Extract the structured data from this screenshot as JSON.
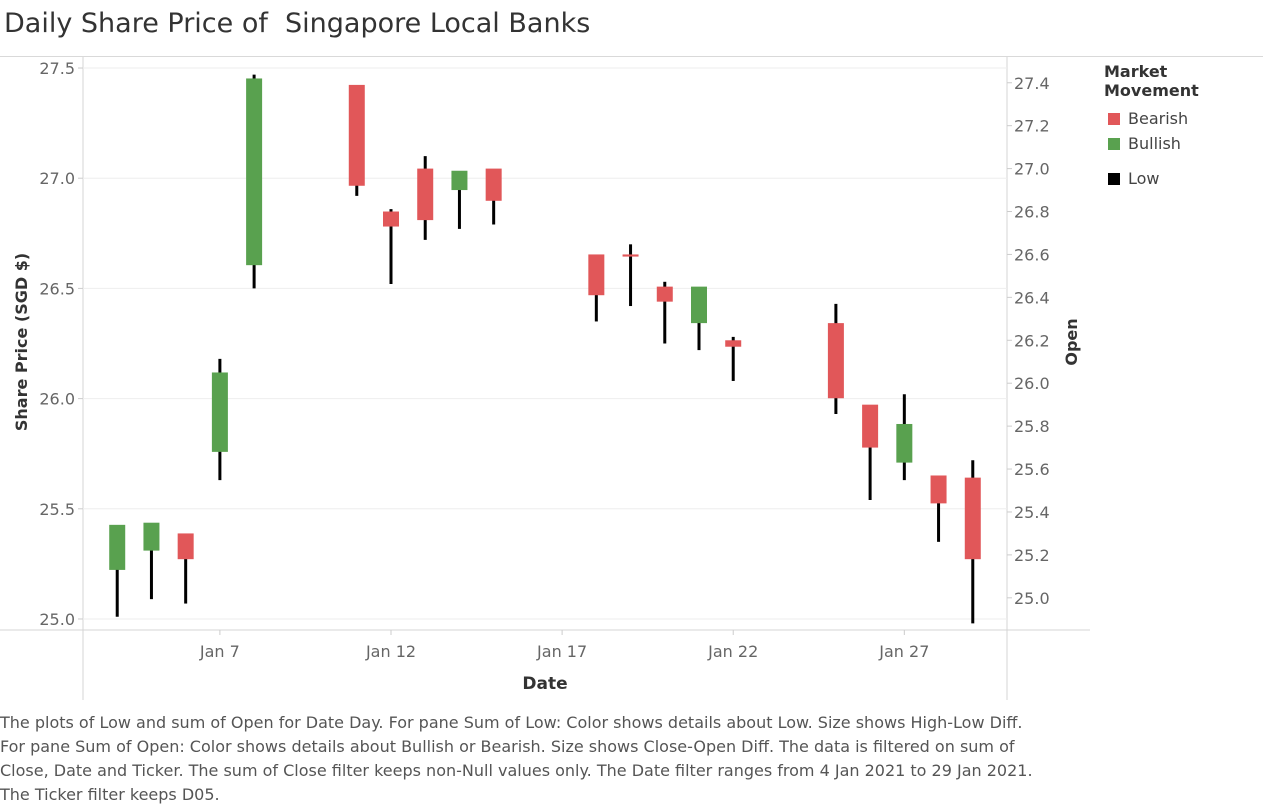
{
  "title": "Daily Share Price of  Singapore Local Banks",
  "legend": {
    "title": "Market Movement",
    "items": [
      {
        "label": "Bearish",
        "color": "#e15759"
      },
      {
        "label": "Bullish",
        "color": "#59a14f"
      },
      {
        "label": "Low",
        "color": "#000000"
      }
    ]
  },
  "caption": {
    "lines": [
      "The plots of Low and sum of Open for Date Day.  For pane Sum of Low:  Color shows details about Low.  Size shows High-Low Diff.",
      "For pane Sum of Open:  Color shows details about Bullish or Bearish.  Size shows Close-Open Diff. The data is filtered on sum of",
      "Close, Date and Ticker. The sum of Close filter keeps non-Null values only. The Date filter ranges from 4 Jan 2021 to 29 Jan 2021.",
      "The Ticker filter keeps D05."
    ]
  },
  "chart_data": {
    "type": "candlestick",
    "xlabel": "Date",
    "ylabel_left": "Share Price (SGD $)",
    "ylabel_right": "Open",
    "x_ticks": [
      {
        "day": 7,
        "label": "Jan 7"
      },
      {
        "day": 12,
        "label": "Jan 12"
      },
      {
        "day": 17,
        "label": "Jan 17"
      },
      {
        "day": 22,
        "label": "Jan 22"
      },
      {
        "day": 27,
        "label": "Jan 27"
      }
    ],
    "xlim": [
      "2021-01-03",
      "2021-01-30"
    ],
    "ylim_left": [
      24.95,
      27.55
    ],
    "ylim_right": [
      24.85,
      27.52
    ],
    "left_ticks": [
      25.0,
      25.5,
      26.0,
      26.5,
      27.0,
      27.5
    ],
    "right_ticks": [
      25.0,
      25.2,
      25.4,
      25.6,
      25.8,
      26.0,
      26.2,
      26.4,
      26.6,
      26.8,
      27.0,
      27.2,
      27.4
    ],
    "colors": {
      "bearish": "#e15759",
      "bullish": "#59a14f",
      "low": "#000000"
    },
    "candles": [
      {
        "date": "2021-01-04",
        "open": 25.13,
        "close": 25.34,
        "low": 25.01,
        "high": 25.34,
        "movement": "Bullish"
      },
      {
        "date": "2021-01-05",
        "open": 25.22,
        "close": 25.35,
        "low": 25.09,
        "high": 25.35,
        "movement": "Bullish"
      },
      {
        "date": "2021-01-06",
        "open": 25.3,
        "close": 25.18,
        "low": 25.07,
        "high": 25.35,
        "movement": "Bearish"
      },
      {
        "date": "2021-01-07",
        "open": 25.68,
        "close": 26.05,
        "low": 25.63,
        "high": 26.18,
        "movement": "Bullish"
      },
      {
        "date": "2021-01-08",
        "open": 26.55,
        "close": 27.42,
        "low": 26.5,
        "high": 27.47,
        "movement": "Bullish"
      },
      {
        "date": "2021-01-11",
        "open": 27.39,
        "close": 26.92,
        "low": 26.92,
        "high": 27.39,
        "movement": "Bearish"
      },
      {
        "date": "2021-01-12",
        "open": 26.8,
        "close": 26.73,
        "low": 26.52,
        "high": 26.86,
        "movement": "Bearish"
      },
      {
        "date": "2021-01-13",
        "open": 27.0,
        "close": 26.76,
        "low": 26.72,
        "high": 27.1,
        "movement": "Bearish"
      },
      {
        "date": "2021-01-14",
        "open": 26.9,
        "close": 26.99,
        "low": 26.77,
        "high": 26.99,
        "movement": "Bullish"
      },
      {
        "date": "2021-01-15",
        "open": 27.0,
        "close": 26.85,
        "low": 26.79,
        "high": 27.02,
        "movement": "Bearish"
      },
      {
        "date": "2021-01-18",
        "open": 26.6,
        "close": 26.41,
        "low": 26.35,
        "high": 26.6,
        "movement": "Bearish"
      },
      {
        "date": "2021-01-19",
        "open": 26.6,
        "close": 26.59,
        "low": 26.42,
        "high": 26.7,
        "movement": "Bearish"
      },
      {
        "date": "2021-01-20",
        "open": 26.45,
        "close": 26.38,
        "low": 26.25,
        "high": 26.53,
        "movement": "Bearish"
      },
      {
        "date": "2021-01-21",
        "open": 26.28,
        "close": 26.45,
        "low": 26.22,
        "high": 26.48,
        "movement": "Bullish"
      },
      {
        "date": "2021-01-22",
        "open": 26.2,
        "close": 26.17,
        "low": 26.08,
        "high": 26.28,
        "movement": "Bearish"
      },
      {
        "date": "2021-01-25",
        "open": 26.28,
        "close": 25.93,
        "low": 25.93,
        "high": 26.43,
        "movement": "Bearish"
      },
      {
        "date": "2021-01-26",
        "open": 25.9,
        "close": 25.7,
        "low": 25.54,
        "high": 25.9,
        "movement": "Bearish"
      },
      {
        "date": "2021-01-27",
        "open": 25.63,
        "close": 25.81,
        "low": 25.63,
        "high": 26.02,
        "movement": "Bullish"
      },
      {
        "date": "2021-01-28",
        "open": 25.57,
        "close": 25.44,
        "low": 25.35,
        "high": 25.59,
        "movement": "Bearish"
      },
      {
        "date": "2021-01-29",
        "open": 25.56,
        "close": 25.18,
        "low": 24.98,
        "high": 25.72,
        "movement": "Bearish"
      }
    ]
  }
}
